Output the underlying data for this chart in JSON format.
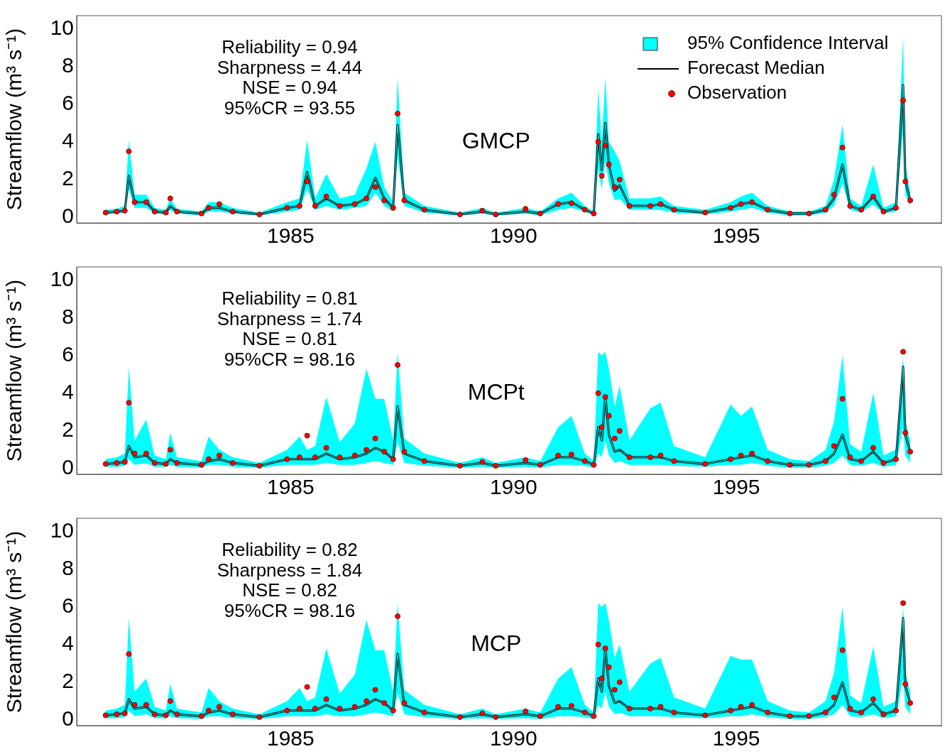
{
  "chart_data": [
    {
      "type": "line",
      "title": "GMCP",
      "ylabel": "Streamflow (m³ s⁻¹)",
      "legend": "top right",
      "xlim": [
        1980.2,
        1999.6
      ],
      "xticks": [
        1985,
        1990,
        1995
      ],
      "ylim": [
        -0.3,
        10.7
      ],
      "yticks": [
        0,
        2,
        4,
        6,
        8,
        10
      ],
      "annotations": [
        "Reliability = 0.94",
        "Sharpness = 4.44",
        "NSE = 0.94",
        "95%CR = 93.55"
      ],
      "x": [
        1980.85,
        1981.1,
        1981.28,
        1981.37,
        1981.5,
        1981.76,
        1981.95,
        1982.2,
        1982.3,
        1982.45,
        1983.0,
        1983.16,
        1983.4,
        1983.7,
        1984.3,
        1984.92,
        1985.2,
        1985.37,
        1985.55,
        1985.8,
        1986.1,
        1986.44,
        1986.7,
        1986.9,
        1987.1,
        1987.3,
        1987.4,
        1987.55,
        1988.0,
        1988.8,
        1989.3,
        1989.6,
        1990.27,
        1990.6,
        1991.0,
        1991.3,
        1991.6,
        1991.8,
        1991.9,
        1991.98,
        1992.06,
        1992.14,
        1992.27,
        1992.38,
        1992.6,
        1993.07,
        1993.3,
        1993.6,
        1994.3,
        1994.87,
        1995.1,
        1995.35,
        1995.7,
        1996.2,
        1996.63,
        1997.0,
        1997.19,
        1997.38,
        1997.55,
        1997.8,
        1998.07,
        1998.3,
        1998.58,
        1998.74,
        1998.79,
        1998.9
      ],
      "series": [
        {
          "name": "95% Confidence Interval",
          "type": "line",
          "color": "#00ffff",
          "values": [
            0.25,
            0.3,
            0.35,
            2.2,
            0.8,
            0.8,
            0.3,
            0.25,
            0.6,
            0.3,
            0.2,
            0.5,
            0.5,
            0.3,
            0.15,
            0.5,
            0.6,
            2.4,
            0.6,
            1.0,
            0.6,
            0.7,
            1.0,
            2.1,
            1.0,
            0.5,
            4.9,
            0.9,
            0.4,
            0.15,
            0.3,
            0.15,
            0.3,
            0.2,
            0.7,
            0.8,
            0.4,
            0.2,
            4.4,
            2.5,
            5.0,
            2.8,
            1.4,
            1.7,
            0.6,
            0.6,
            0.7,
            0.4,
            0.25,
            0.5,
            0.7,
            0.8,
            0.4,
            0.2,
            0.2,
            0.4,
            1.0,
            2.8,
            0.6,
            0.4,
            1.1,
            0.3,
            0.5,
            7.0,
            1.9,
            0.9
          ],
          "lower": [
            0.15,
            0.2,
            0.25,
            1.5,
            0.5,
            0.5,
            0.2,
            0.15,
            0.4,
            0.2,
            0.1,
            0.3,
            0.3,
            0.2,
            0.1,
            0.3,
            0.4,
            1.5,
            0.4,
            0.6,
            0.4,
            0.5,
            0.6,
            1.3,
            0.6,
            0.3,
            3.2,
            0.6,
            0.25,
            0.1,
            0.2,
            0.1,
            0.2,
            0.1,
            0.4,
            0.5,
            0.3,
            0.1,
            2.6,
            1.5,
            3.0,
            1.8,
            0.9,
            1.0,
            0.4,
            0.4,
            0.4,
            0.25,
            0.15,
            0.3,
            0.4,
            0.5,
            0.25,
            0.1,
            0.1,
            0.25,
            0.6,
            1.8,
            0.4,
            0.25,
            0.7,
            0.2,
            0.3,
            4.6,
            1.2,
            0.6
          ],
          "upper": [
            0.4,
            0.45,
            0.6,
            4.1,
            1.2,
            1.2,
            0.5,
            0.4,
            1.0,
            0.45,
            0.3,
            0.8,
            0.8,
            0.5,
            0.25,
            0.8,
            1.0,
            4.1,
            1.0,
            2.3,
            1.0,
            1.2,
            2.6,
            4.0,
            1.6,
            0.8,
            7.4,
            1.3,
            0.6,
            0.25,
            0.5,
            0.25,
            0.5,
            0.3,
            1.0,
            1.3,
            0.6,
            0.3,
            6.8,
            4.0,
            7.4,
            4.0,
            3.5,
            3.0,
            1.0,
            1.0,
            1.1,
            0.6,
            0.4,
            0.8,
            1.1,
            1.3,
            0.6,
            0.3,
            0.3,
            0.6,
            2.0,
            4.9,
            1.0,
            0.6,
            2.8,
            0.5,
            0.8,
            9.6,
            2.8,
            1.3
          ]
        },
        {
          "name": "Forecast Median",
          "type": "line",
          "color": "#000000",
          "values": [
            0.25,
            0.3,
            0.35,
            2.2,
            0.8,
            0.8,
            0.3,
            0.25,
            0.6,
            0.3,
            0.2,
            0.5,
            0.5,
            0.3,
            0.15,
            0.5,
            0.6,
            2.4,
            0.6,
            1.0,
            0.6,
            0.7,
            1.0,
            2.1,
            1.0,
            0.5,
            4.9,
            0.9,
            0.4,
            0.15,
            0.3,
            0.15,
            0.3,
            0.2,
            0.7,
            0.8,
            0.4,
            0.2,
            4.4,
            2.5,
            5.0,
            2.8,
            1.4,
            1.7,
            0.6,
            0.6,
            0.7,
            0.4,
            0.25,
            0.5,
            0.7,
            0.8,
            0.4,
            0.2,
            0.2,
            0.4,
            1.0,
            2.8,
            0.6,
            0.4,
            1.1,
            0.3,
            0.5,
            7.0,
            1.9,
            0.9
          ]
        },
        {
          "name": "Observation",
          "type": "scatter",
          "color": "#ff0000",
          "marker": "circle",
          "values": [
            0.25,
            0.3,
            0.35,
            3.5,
            0.8,
            0.8,
            0.3,
            0.25,
            1.0,
            0.3,
            0.2,
            0.5,
            0.7,
            0.3,
            0.15,
            0.5,
            0.6,
            1.9,
            0.6,
            1.1,
            0.6,
            0.7,
            1.0,
            1.6,
            0.9,
            0.5,
            5.5,
            0.9,
            0.4,
            0.15,
            0.35,
            0.15,
            0.45,
            0.2,
            0.7,
            0.75,
            0.4,
            0.2,
            4.0,
            2.2,
            3.8,
            2.8,
            1.6,
            2.0,
            0.6,
            0.6,
            0.7,
            0.4,
            0.25,
            0.5,
            0.7,
            0.8,
            0.4,
            0.2,
            0.2,
            0.4,
            1.2,
            3.7,
            0.6,
            0.4,
            1.1,
            0.3,
            0.5,
            6.2,
            1.9,
            0.9
          ]
        }
      ]
    },
    {
      "type": "line",
      "title": "MCPt",
      "ylabel": "Streamflow (m³ s⁻¹)",
      "xlim": [
        1980.2,
        1999.6
      ],
      "xticks": [
        1985,
        1990,
        1995
      ],
      "ylim": [
        -0.3,
        10.7
      ],
      "yticks": [
        0,
        2,
        4,
        6,
        8,
        10
      ],
      "annotations": [
        "Reliability = 0.81",
        "Sharpness = 1.74",
        "NSE = 0.81",
        "95%CR = 98.16"
      ],
      "x": [
        1980.85,
        1981.1,
        1981.28,
        1981.37,
        1981.5,
        1981.76,
        1981.95,
        1982.2,
        1982.3,
        1982.45,
        1983.0,
        1983.16,
        1983.4,
        1983.7,
        1984.3,
        1984.92,
        1985.2,
        1985.37,
        1985.55,
        1985.8,
        1986.1,
        1986.44,
        1986.7,
        1986.9,
        1987.1,
        1987.3,
        1987.4,
        1987.55,
        1988.0,
        1988.8,
        1989.3,
        1989.6,
        1990.27,
        1990.6,
        1991.0,
        1991.3,
        1991.6,
        1991.8,
        1991.9,
        1991.98,
        1992.06,
        1992.14,
        1992.27,
        1992.38,
        1992.6,
        1993.07,
        1993.3,
        1993.6,
        1994.3,
        1994.87,
        1995.1,
        1995.35,
        1995.7,
        1996.2,
        1996.63,
        1997.0,
        1997.19,
        1997.38,
        1997.55,
        1997.8,
        1998.07,
        1998.3,
        1998.58,
        1998.74,
        1998.79,
        1998.9
      ],
      "series": [
        {
          "type": "line",
          "color": "#00ffff",
          "values": [
            0.25,
            0.3,
            0.35,
            1.2,
            0.6,
            0.7,
            0.3,
            0.25,
            0.5,
            0.3,
            0.2,
            0.4,
            0.5,
            0.3,
            0.15,
            0.5,
            0.5,
            0.5,
            0.5,
            0.8,
            0.5,
            0.6,
            0.8,
            1.1,
            0.9,
            0.5,
            3.3,
            0.8,
            0.4,
            0.15,
            0.3,
            0.15,
            0.3,
            0.2,
            0.6,
            0.6,
            0.4,
            0.2,
            2.2,
            1.5,
            3.8,
            1.8,
            0.9,
            1.0,
            0.6,
            0.6,
            0.6,
            0.4,
            0.25,
            0.5,
            0.6,
            0.7,
            0.4,
            0.2,
            0.2,
            0.4,
            0.8,
            1.8,
            0.5,
            0.4,
            0.9,
            0.3,
            0.5,
            5.4,
            1.8,
            0.9
          ],
          "lower": [
            0.1,
            0.1,
            0.15,
            0.5,
            0.2,
            0.3,
            0.1,
            0.1,
            0.2,
            0.1,
            0.05,
            0.2,
            0.2,
            0.1,
            0.05,
            0.2,
            0.2,
            0.2,
            0.2,
            0.3,
            0.2,
            0.2,
            0.3,
            0.4,
            0.3,
            0.2,
            1.4,
            0.3,
            0.15,
            0.05,
            0.1,
            0.05,
            0.1,
            0.05,
            0.2,
            0.2,
            0.15,
            0.05,
            0.8,
            0.6,
            1.5,
            0.7,
            0.3,
            0.4,
            0.2,
            0.2,
            0.2,
            0.15,
            0.1,
            0.2,
            0.2,
            0.3,
            0.15,
            0.05,
            0.05,
            0.15,
            0.3,
            0.7,
            0.2,
            0.15,
            0.3,
            0.1,
            0.2,
            2.2,
            0.7,
            0.3
          ],
          "upper": [
            0.5,
            0.6,
            0.8,
            5.4,
            1.5,
            2.6,
            0.7,
            0.5,
            1.9,
            0.6,
            0.4,
            1.7,
            1.0,
            0.6,
            0.3,
            1.0,
            1.7,
            1.0,
            1.2,
            3.8,
            1.4,
            2.4,
            5.3,
            3.7,
            3.7,
            1.5,
            6.2,
            1.6,
            0.8,
            0.3,
            0.6,
            0.3,
            0.6,
            0.4,
            2.2,
            2.8,
            0.8,
            0.4,
            6.2,
            6.0,
            6.2,
            5.3,
            3.3,
            4.4,
            1.5,
            3.2,
            3.5,
            1.2,
            0.6,
            3.4,
            2.8,
            3.3,
            1.0,
            0.5,
            0.4,
            1.0,
            2.5,
            6.0,
            1.3,
            0.9,
            4.0,
            0.7,
            1.0,
            6.0,
            2.5,
            1.5
          ]
        },
        {
          "type": "line",
          "color": "#000000",
          "values": [
            0.25,
            0.3,
            0.35,
            1.2,
            0.6,
            0.7,
            0.3,
            0.25,
            0.5,
            0.3,
            0.2,
            0.4,
            0.5,
            0.3,
            0.15,
            0.5,
            0.5,
            0.5,
            0.5,
            0.8,
            0.5,
            0.6,
            0.8,
            1.1,
            0.9,
            0.5,
            3.3,
            0.8,
            0.4,
            0.15,
            0.3,
            0.15,
            0.3,
            0.2,
            0.6,
            0.6,
            0.4,
            0.2,
            2.2,
            1.5,
            3.8,
            1.8,
            0.9,
            1.0,
            0.6,
            0.6,
            0.6,
            0.4,
            0.25,
            0.5,
            0.6,
            0.7,
            0.4,
            0.2,
            0.2,
            0.4,
            0.8,
            1.8,
            0.5,
            0.4,
            0.9,
            0.3,
            0.5,
            5.4,
            1.8,
            0.9
          ]
        },
        {
          "type": "scatter",
          "color": "#ff0000",
          "marker": "circle",
          "values": [
            0.25,
            0.3,
            0.35,
            3.5,
            0.8,
            0.8,
            0.3,
            0.25,
            1.0,
            0.3,
            0.2,
            0.5,
            0.7,
            0.3,
            0.15,
            0.5,
            0.6,
            1.75,
            0.6,
            1.1,
            0.6,
            0.7,
            1.0,
            1.6,
            0.9,
            0.5,
            5.5,
            0.9,
            0.4,
            0.15,
            0.35,
            0.15,
            0.45,
            0.2,
            0.7,
            0.75,
            0.4,
            0.2,
            4.0,
            2.2,
            3.8,
            2.8,
            1.6,
            2.0,
            0.6,
            0.6,
            0.7,
            0.4,
            0.25,
            0.5,
            0.7,
            0.8,
            0.4,
            0.2,
            0.2,
            0.4,
            1.2,
            3.7,
            0.6,
            0.4,
            1.1,
            0.3,
            0.5,
            6.2,
            1.9,
            0.9
          ]
        }
      ]
    },
    {
      "type": "line",
      "title": "MCP",
      "ylabel": "Streamflow (m³ s⁻¹)",
      "xlim": [
        1980.2,
        1999.6
      ],
      "xticks": [
        1985,
        1990,
        1995
      ],
      "ylim": [
        -0.3,
        10.7
      ],
      "yticks": [
        0,
        2,
        4,
        6,
        8,
        10
      ],
      "annotations": [
        "Reliability = 0.82",
        "Sharpness = 1.84",
        "NSE = 0.82",
        "95%CR = 98.16"
      ],
      "x": [
        1980.85,
        1981.1,
        1981.28,
        1981.37,
        1981.5,
        1981.76,
        1981.95,
        1982.2,
        1982.3,
        1982.45,
        1983.0,
        1983.16,
        1983.4,
        1983.7,
        1984.3,
        1984.92,
        1985.2,
        1985.37,
        1985.55,
        1985.8,
        1986.1,
        1986.44,
        1986.7,
        1986.9,
        1987.1,
        1987.3,
        1987.4,
        1987.55,
        1988.0,
        1988.8,
        1989.3,
        1989.6,
        1990.27,
        1990.6,
        1991.0,
        1991.3,
        1991.6,
        1991.8,
        1991.9,
        1991.98,
        1992.06,
        1992.14,
        1992.27,
        1992.38,
        1992.6,
        1993.07,
        1993.3,
        1993.6,
        1994.3,
        1994.87,
        1995.1,
        1995.35,
        1995.7,
        1996.2,
        1996.63,
        1997.0,
        1997.19,
        1997.38,
        1997.55,
        1997.8,
        1998.07,
        1998.3,
        1998.58,
        1998.74,
        1998.79,
        1998.9
      ],
      "series": [
        {
          "type": "line",
          "color": "#00ffff",
          "values": [
            0.25,
            0.3,
            0.35,
            1.1,
            0.6,
            0.7,
            0.3,
            0.25,
            0.5,
            0.3,
            0.2,
            0.4,
            0.5,
            0.3,
            0.15,
            0.5,
            0.5,
            0.5,
            0.5,
            0.8,
            0.5,
            0.6,
            0.8,
            1.1,
            0.9,
            0.5,
            3.5,
            0.8,
            0.4,
            0.15,
            0.3,
            0.15,
            0.3,
            0.2,
            0.6,
            0.6,
            0.4,
            0.2,
            2.2,
            1.5,
            3.8,
            1.8,
            0.9,
            1.0,
            0.6,
            0.6,
            0.6,
            0.4,
            0.25,
            0.5,
            0.6,
            0.7,
            0.4,
            0.2,
            0.2,
            0.4,
            0.8,
            2.0,
            0.5,
            0.4,
            0.9,
            0.3,
            0.5,
            5.4,
            1.8,
            0.9
          ],
          "lower": [
            0.1,
            0.1,
            0.15,
            0.5,
            0.2,
            0.3,
            0.1,
            0.1,
            0.2,
            0.1,
            0.05,
            0.2,
            0.2,
            0.1,
            0.05,
            0.2,
            0.2,
            0.2,
            0.2,
            0.3,
            0.2,
            0.2,
            0.3,
            0.4,
            0.3,
            0.2,
            1.4,
            0.3,
            0.15,
            0.05,
            0.1,
            0.05,
            0.1,
            0.05,
            0.2,
            0.2,
            0.15,
            0.05,
            0.8,
            0.6,
            1.5,
            0.7,
            0.3,
            0.4,
            0.2,
            0.2,
            0.2,
            0.15,
            0.1,
            0.2,
            0.2,
            0.3,
            0.15,
            0.05,
            0.05,
            0.15,
            0.3,
            0.8,
            0.2,
            0.15,
            0.3,
            0.1,
            0.2,
            2.2,
            0.7,
            0.3
          ],
          "upper": [
            0.5,
            0.6,
            0.8,
            5.4,
            1.5,
            2.2,
            0.7,
            0.5,
            1.9,
            0.6,
            0.4,
            1.7,
            1.0,
            0.6,
            0.3,
            1.0,
            1.7,
            1.0,
            1.2,
            3.8,
            1.4,
            2.4,
            5.3,
            3.7,
            3.7,
            1.5,
            6.2,
            1.6,
            0.8,
            0.3,
            0.6,
            0.3,
            0.6,
            0.4,
            2.2,
            2.8,
            0.8,
            0.4,
            6.2,
            6.0,
            6.2,
            5.3,
            3.3,
            4.0,
            1.5,
            3.0,
            3.3,
            1.2,
            0.6,
            3.4,
            3.2,
            3.2,
            1.0,
            0.5,
            0.4,
            1.0,
            2.5,
            6.0,
            1.3,
            0.9,
            3.9,
            0.7,
            1.0,
            6.0,
            2.5,
            1.5
          ]
        },
        {
          "type": "line",
          "color": "#000000",
          "values": [
            0.25,
            0.3,
            0.35,
            1.1,
            0.6,
            0.7,
            0.3,
            0.25,
            0.5,
            0.3,
            0.2,
            0.4,
            0.5,
            0.3,
            0.15,
            0.5,
            0.5,
            0.5,
            0.5,
            0.8,
            0.5,
            0.6,
            0.8,
            1.1,
            0.9,
            0.5,
            3.5,
            0.8,
            0.4,
            0.15,
            0.3,
            0.15,
            0.3,
            0.2,
            0.6,
            0.6,
            0.4,
            0.2,
            2.2,
            1.5,
            3.8,
            1.8,
            0.9,
            1.0,
            0.6,
            0.6,
            0.6,
            0.4,
            0.25,
            0.5,
            0.6,
            0.7,
            0.4,
            0.2,
            0.2,
            0.4,
            0.8,
            2.0,
            0.5,
            0.4,
            0.9,
            0.3,
            0.5,
            5.4,
            1.8,
            0.9
          ]
        },
        {
          "type": "scatter",
          "color": "#ff0000",
          "marker": "circle",
          "values": [
            0.25,
            0.3,
            0.35,
            3.5,
            0.8,
            0.8,
            0.3,
            0.25,
            1.0,
            0.3,
            0.2,
            0.5,
            0.7,
            0.3,
            0.15,
            0.5,
            0.6,
            1.75,
            0.6,
            1.1,
            0.6,
            0.7,
            1.0,
            1.6,
            0.9,
            0.5,
            5.5,
            0.9,
            0.4,
            0.15,
            0.35,
            0.15,
            0.45,
            0.2,
            0.7,
            0.75,
            0.4,
            0.2,
            4.0,
            2.2,
            3.8,
            2.8,
            1.6,
            2.0,
            0.6,
            0.6,
            0.7,
            0.4,
            0.25,
            0.5,
            0.7,
            0.8,
            0.4,
            0.2,
            0.2,
            0.4,
            1.2,
            3.7,
            0.6,
            0.4,
            1.1,
            0.3,
            0.5,
            6.2,
            1.9,
            0.9
          ]
        }
      ]
    }
  ]
}
